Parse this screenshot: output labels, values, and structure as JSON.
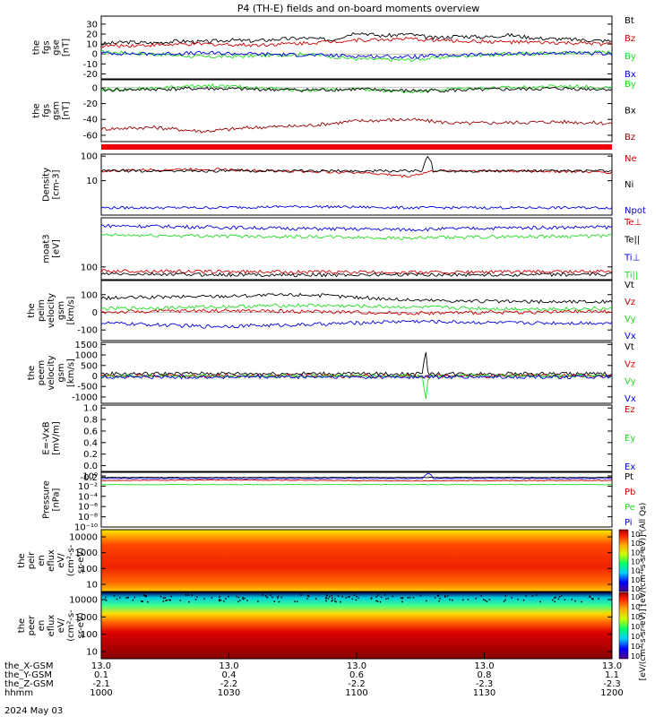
{
  "title": "P4 (TH-E) fields and on-board moments overview",
  "date_label": "2024 May 03",
  "colors": {
    "black": "#000000",
    "red": "#cc0000",
    "green": "#22dd22",
    "blue": "#0000dd",
    "darkred": "#990000"
  },
  "chart_data": [
    {
      "type": "line",
      "id": "fgs-gse",
      "ylabel_lines": [
        "the",
        "fgs",
        "gse",
        "[nT]"
      ],
      "ylim": [
        -25,
        38
      ],
      "ticks": [
        "30",
        "20",
        "10",
        "0",
        "-10",
        "-20"
      ],
      "tick_values": [
        30,
        20,
        10,
        0,
        -10,
        -20
      ],
      "series": [
        {
          "name": "Bt",
          "color": "#000000",
          "x": [
            0,
            0.05,
            0.1,
            0.15,
            0.2,
            0.25,
            0.3,
            0.35,
            0.4,
            0.45,
            0.5,
            0.55,
            0.6,
            0.65,
            0.7,
            0.75,
            0.8,
            0.85,
            0.9,
            0.95,
            1
          ],
          "values": [
            10,
            12,
            11,
            13,
            12,
            14,
            13,
            15,
            16,
            14,
            22,
            18,
            20,
            16,
            18,
            17,
            19,
            16,
            15,
            14,
            13
          ]
        },
        {
          "name": "Bz",
          "color": "#cc0000",
          "x": [
            0,
            0.1,
            0.2,
            0.3,
            0.4,
            0.5,
            0.6,
            0.7,
            0.8,
            0.9,
            1
          ],
          "values": [
            8,
            9,
            10,
            9,
            11,
            14,
            15,
            13,
            12,
            11,
            10
          ]
        },
        {
          "name": "By",
          "color": "#22dd22",
          "x": [
            0,
            0.1,
            0.2,
            0.3,
            0.4,
            0.5,
            0.6,
            0.7,
            0.8,
            0.9,
            1
          ],
          "values": [
            2,
            0,
            -3,
            -2,
            0,
            -5,
            -6,
            -2,
            0,
            1,
            2
          ]
        },
        {
          "name": "Bx",
          "color": "#0000dd",
          "x": [
            0,
            0.1,
            0.2,
            0.3,
            0.4,
            0.5,
            0.6,
            0.7,
            0.8,
            0.9,
            1
          ],
          "values": [
            1,
            0,
            1,
            0,
            -1,
            -2,
            -3,
            -1,
            0,
            1,
            0
          ]
        }
      ]
    },
    {
      "type": "line",
      "id": "fgs-gsm",
      "ylabel_lines": [
        "the",
        "fgs",
        "gsm",
        "[nT]"
      ],
      "ylim": [
        -68,
        10
      ],
      "ticks": [
        "0",
        "-20",
        "-40",
        "-60"
      ],
      "tick_values": [
        0,
        -20,
        -40,
        -60
      ],
      "series": [
        {
          "name": "By",
          "color": "#22dd22",
          "x": [
            0,
            0.1,
            0.2,
            0.3,
            0.4,
            0.5,
            0.6,
            0.7,
            0.8,
            0.9,
            1
          ],
          "values": [
            -2,
            -1,
            3,
            0,
            -3,
            -2,
            -5,
            -1,
            0,
            2,
            0
          ]
        },
        {
          "name": "Bx",
          "color": "#000000",
          "x": [
            0,
            0.1,
            0.2,
            0.3,
            0.4,
            0.5,
            0.6,
            0.7,
            0.8,
            0.9,
            1
          ],
          "values": [
            -3,
            -2,
            -1,
            -2,
            -3,
            -2,
            -4,
            -3,
            -2,
            -1,
            -2
          ]
        },
        {
          "name": "Bz",
          "color": "#990000",
          "x": [
            0,
            0.1,
            0.2,
            0.3,
            0.4,
            0.5,
            0.6,
            0.7,
            0.8,
            0.9,
            1
          ],
          "values": [
            -52,
            -50,
            -55,
            -50,
            -48,
            -42,
            -40,
            -45,
            -44,
            -43,
            -45
          ]
        }
      ]
    },
    {
      "type": "line",
      "id": "density",
      "log": true,
      "ylabel_lines": [
        "Density",
        "[cm-3]"
      ],
      "ylim": [
        0.4,
        120
      ],
      "ticks": [
        "100",
        "10"
      ],
      "tick_values": [
        100,
        10
      ],
      "series": [
        {
          "name": "Ne",
          "color": "#cc0000",
          "x": [
            0,
            0.1,
            0.2,
            0.3,
            0.4,
            0.5,
            0.6,
            0.63,
            0.65,
            0.7,
            0.8,
            0.9,
            1
          ],
          "values": [
            25,
            28,
            30,
            26,
            24,
            22,
            15,
            20,
            25,
            26,
            25,
            24,
            22
          ]
        },
        {
          "name": "Ni",
          "color": "#000000",
          "x": [
            0,
            0.63,
            0.64,
            0.65,
            1
          ],
          "values": [
            25,
            25,
            100,
            25,
            25
          ]
        },
        {
          "name": "Npot",
          "color": "#0000dd",
          "x": [
            0,
            0.2,
            0.4,
            0.6,
            0.8,
            1
          ],
          "values": [
            0.8,
            0.8,
            0.9,
            0.8,
            0.8,
            0.8
          ]
        }
      ]
    },
    {
      "type": "line",
      "id": "temperature",
      "log": true,
      "ylabel_lines": [
        "moat3",
        "[eV]"
      ],
      "ylim": [
        40,
        3500
      ],
      "ticks": [
        "100"
      ],
      "tick_values": [
        100
      ],
      "series": [
        {
          "name": "Te⊥",
          "color": "#cc0000",
          "x": [
            0,
            0.2,
            0.4,
            0.6,
            0.8,
            1
          ],
          "values": [
            75,
            72,
            70,
            68,
            70,
            72
          ]
        },
        {
          "name": "Te||",
          "color": "#000000",
          "x": [
            0,
            0.2,
            0.4,
            0.6,
            0.8,
            1
          ],
          "values": [
            60,
            58,
            56,
            58,
            57,
            58
          ]
        },
        {
          "name": "Ti⊥",
          "color": "#0000dd",
          "x": [
            0,
            0.2,
            0.4,
            0.6,
            0.8,
            1
          ],
          "values": [
            2000,
            1800,
            1600,
            1500,
            1700,
            1800
          ]
        },
        {
          "name": "Ti||",
          "color": "#22dd22",
          "x": [
            0,
            0.2,
            0.4,
            0.6,
            0.8,
            1
          ],
          "values": [
            1000,
            950,
            900,
            800,
            900,
            950
          ]
        }
      ]
    },
    {
      "type": "line",
      "id": "peim-velocity",
      "ylabel_lines": [
        "the",
        "peim",
        "velocity",
        "gsm",
        "[km/s]"
      ],
      "ylim": [
        -160,
        180
      ],
      "ticks": [
        "100",
        "0",
        "-100"
      ],
      "tick_values": [
        100,
        0,
        -100
      ],
      "series": [
        {
          "name": "Vt",
          "color": "#000000",
          "x": [
            0,
            0.2,
            0.4,
            0.6,
            0.8,
            1
          ],
          "values": [
            80,
            90,
            100,
            70,
            60,
            60
          ]
        },
        {
          "name": "Vz",
          "color": "#cc0000",
          "x": [
            0,
            0.2,
            0.4,
            0.6,
            0.8,
            1
          ],
          "values": [
            0,
            10,
            5,
            -5,
            0,
            5
          ]
        },
        {
          "name": "Vy",
          "color": "#22dd22",
          "x": [
            0,
            0.2,
            0.4,
            0.6,
            0.8,
            1
          ],
          "values": [
            20,
            30,
            40,
            30,
            20,
            20
          ]
        },
        {
          "name": "Vx",
          "color": "#0000dd",
          "x": [
            0,
            0.2,
            0.4,
            0.6,
            0.8,
            1
          ],
          "values": [
            -60,
            -80,
            -70,
            -50,
            -60,
            -60
          ]
        }
      ]
    },
    {
      "type": "line",
      "id": "peem-velocity",
      "ylabel_lines": [
        "the",
        "peem",
        "velocity",
        "gsm",
        "[km/s]"
      ],
      "ylim": [
        -1300,
        1600
      ],
      "ticks": [
        "1500",
        "1000",
        "500",
        "0",
        "-500",
        "-1000"
      ],
      "tick_values": [
        1500,
        1000,
        500,
        0,
        -500,
        -1000
      ],
      "series": [
        {
          "name": "Vt",
          "color": "#000000",
          "x": [
            0,
            0.2,
            0.4,
            0.63,
            0.635,
            0.64,
            0.8,
            1
          ],
          "values": [
            100,
            120,
            110,
            100,
            1400,
            100,
            110,
            100
          ]
        },
        {
          "name": "Vz",
          "color": "#cc0000",
          "x": [
            0,
            0.5,
            1
          ],
          "values": [
            0,
            0,
            0
          ]
        },
        {
          "name": "Vy",
          "color": "#22dd22",
          "x": [
            0,
            0.63,
            0.635,
            0.64,
            1
          ],
          "values": [
            0,
            0,
            -1200,
            0,
            0
          ]
        },
        {
          "name": "Vx",
          "color": "#0000dd",
          "x": [
            0,
            0.5,
            1
          ],
          "values": [
            -50,
            -50,
            -50
          ]
        }
      ]
    },
    {
      "type": "line",
      "id": "efield",
      "ylabel_lines": [
        "E=-VxB",
        "[mV/m]"
      ],
      "ylim": [
        -0.1,
        1.05
      ],
      "ticks": [
        "1.0",
        "0.8",
        "0.6",
        "0.4",
        "0.2",
        "0.0",
        "-0.2"
      ],
      "tick_values": [
        1.0,
        0.8,
        0.6,
        0.4,
        0.2,
        0.0,
        -0.2
      ],
      "series": [
        {
          "name": "Ez",
          "color": "#cc0000",
          "x": [],
          "values": []
        },
        {
          "name": "Ey",
          "color": "#22dd22",
          "x": [],
          "values": []
        },
        {
          "name": "Ex",
          "color": "#0000dd",
          "x": [],
          "values": []
        }
      ]
    },
    {
      "type": "line",
      "id": "pressure",
      "log": true,
      "ylabel_lines": [
        "Pressure",
        "[nPa]"
      ],
      "ylim": [
        1e-10,
        5
      ],
      "ticks": [
        "10⁰",
        "10⁻²",
        "10⁻⁴",
        "10⁻⁶",
        "10⁻⁸",
        "10⁻¹⁰"
      ],
      "tick_values": [
        1,
        0.01,
        0.0001,
        1e-06,
        1e-08,
        1e-10
      ],
      "series": [
        {
          "name": "Pt",
          "color": "#000000",
          "x": [
            0,
            0.5,
            1
          ],
          "values": [
            0.5,
            0.5,
            0.5
          ]
        },
        {
          "name": "Pb",
          "color": "#cc0000",
          "x": [
            0,
            0.2,
            0.4,
            0.6,
            0.8,
            1
          ],
          "values": [
            0.12,
            0.15,
            0.14,
            0.1,
            0.12,
            0.13
          ]
        },
        {
          "name": "Pe",
          "color": "#22dd22",
          "x": [
            0,
            0.5,
            1
          ],
          "values": [
            0.02,
            0.02,
            0.02
          ]
        },
        {
          "name": "Pi",
          "color": "#0000dd",
          "x": [
            0,
            0.63,
            0.64,
            0.65,
            1
          ],
          "values": [
            0.3,
            0.3,
            3,
            0.3,
            0.3
          ]
        }
      ]
    },
    {
      "type": "heatmap",
      "id": "peir-spectrogram",
      "ylabel_lines": [
        "the",
        "peir",
        "en",
        "eflux",
        "eV/",
        "(cm²-s-",
        "sr-eV)"
      ],
      "ticks": [
        "10000",
        "1000",
        "100",
        "10"
      ],
      "colorbar_ticks": [
        "10⁸",
        "10⁷",
        "10⁶",
        "10⁵",
        "10⁴",
        "10³",
        "10²"
      ]
    },
    {
      "type": "heatmap",
      "id": "peer-spectrogram",
      "ylabel_lines": [
        "the",
        "peer",
        "en",
        "eflux",
        "eV/",
        "(cm²-s-",
        "sr-eV)"
      ],
      "ticks": [
        "10000",
        "1000",
        "100",
        "10"
      ],
      "colorbar_ticks": [
        "10⁸",
        "10⁷",
        "10⁶",
        "10⁵",
        "10⁴",
        "10³",
        "10²"
      ]
    }
  ],
  "colorbar_label": "[eV/(cm²-s-sr-eV)] [eV/(cm²-s-sr-eV)] (All Qs)",
  "xaxis": {
    "rows": [
      {
        "label": "the_X-GSM",
        "values": [
          "13.0",
          "13.0",
          "13.0",
          "13.0",
          "13.0"
        ]
      },
      {
        "label": "the_Y-GSM",
        "values": [
          "0.1",
          "0.4",
          "0.6",
          "0.8",
          "1.1"
        ]
      },
      {
        "label": "the_Z-GSM",
        "values": [
          "-2.1",
          "-2.2",
          "-2.2",
          "-2.3",
          "-2.3"
        ]
      },
      {
        "label": "hhmm",
        "values": [
          "1000",
          "1030",
          "1100",
          "1130",
          "1200"
        ]
      }
    ]
  }
}
